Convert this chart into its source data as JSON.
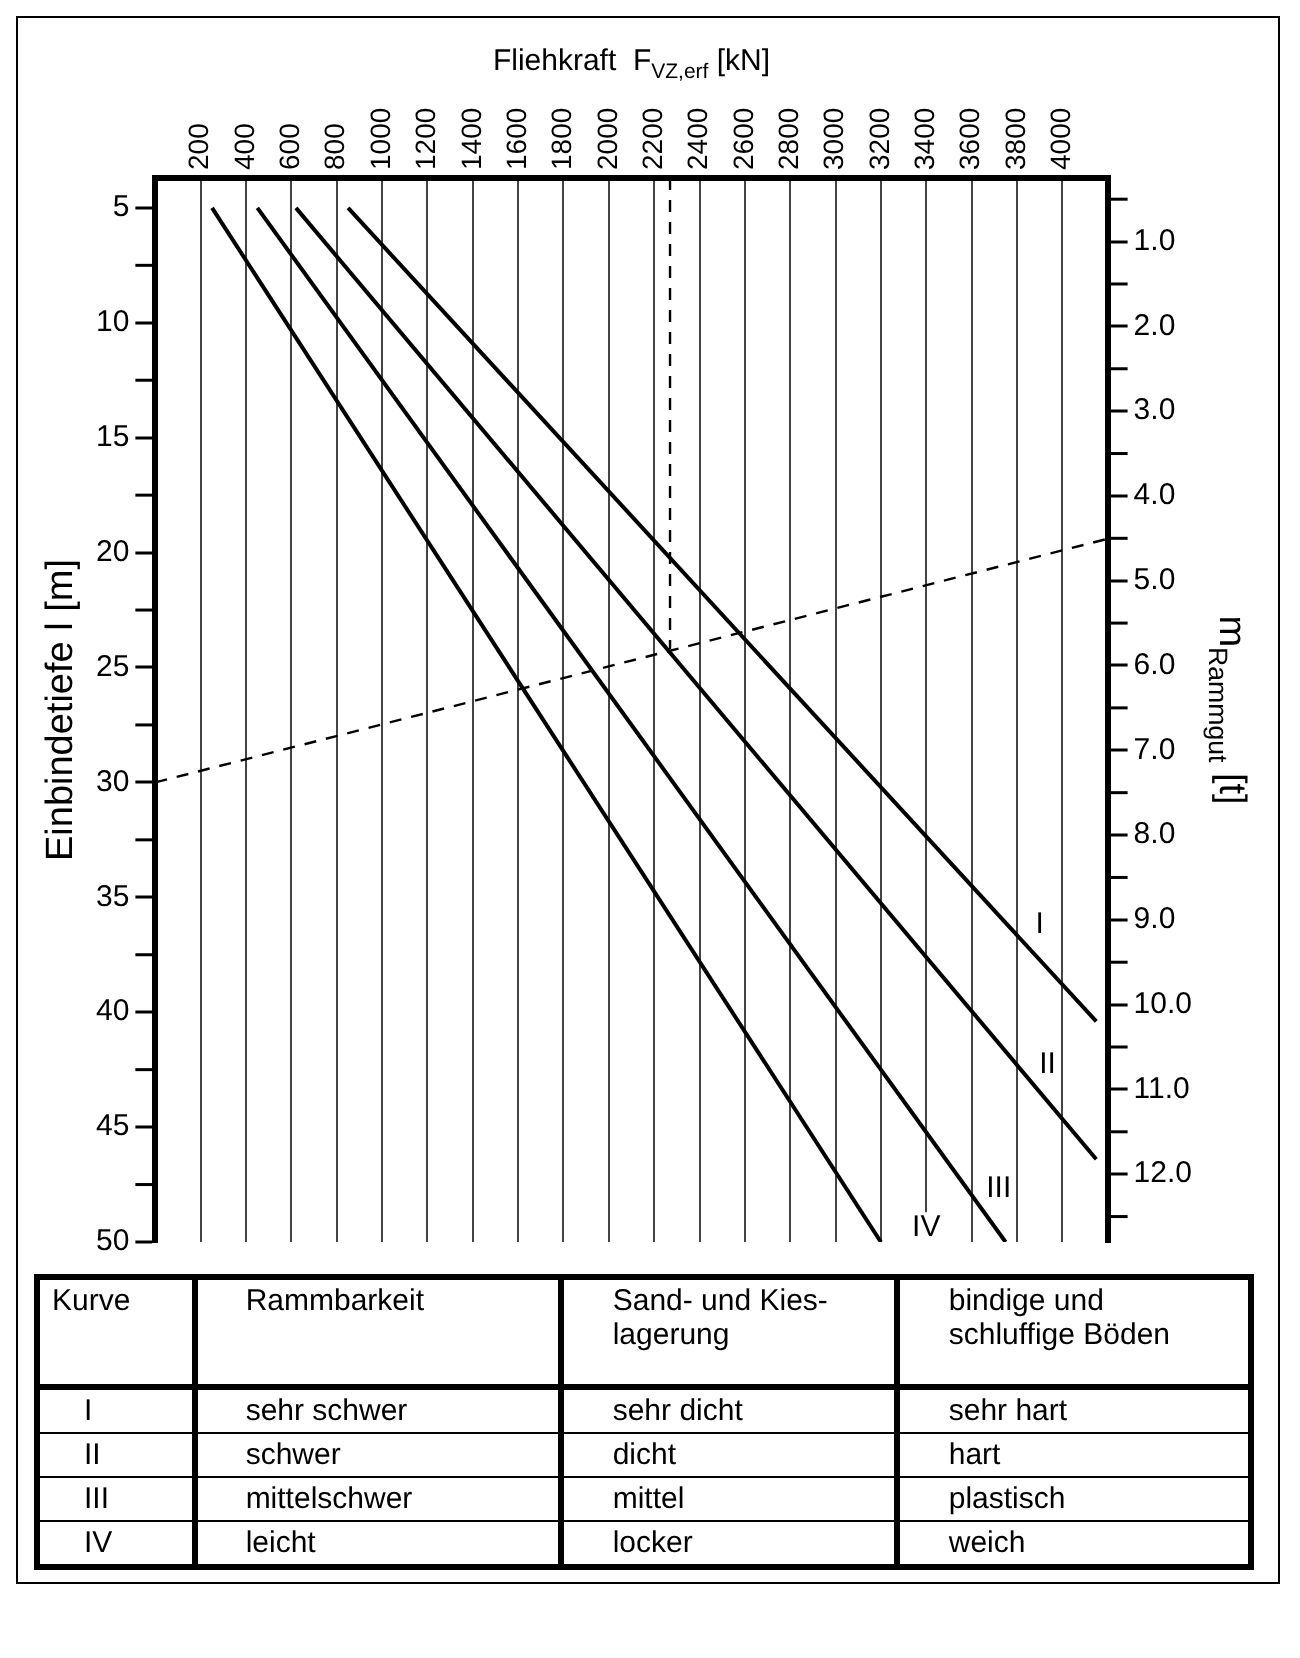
{
  "chart_data": [
    {
      "type": "line",
      "xlabel": "Fliehkraft  F$_{VZ,erf}$ [kN]",
      "ylabel": "Einbindetiefe l [m]",
      "y2label": "m$_{Rammgut}$ [t]",
      "xlim": [
        0,
        4200
      ],
      "xticks": [
        200,
        400,
        600,
        800,
        1000,
        1200,
        1400,
        1600,
        1800,
        2000,
        2200,
        2400,
        2600,
        2800,
        3000,
        3200,
        3400,
        3600,
        3800,
        4000
      ],
      "ylim": [
        50,
        3.7
      ],
      "yticks": [
        5,
        {
          "value": 7.5,
          "label": null
        },
        10,
        {
          "value": 12.5,
          "label": null
        },
        15,
        {
          "value": 17.5,
          "label": null
        },
        20,
        {
          "value": 22.5,
          "label": null
        },
        25,
        {
          "value": 27.5,
          "label": null
        },
        30,
        {
          "value": 32.5,
          "label": null
        },
        35,
        {
          "value": 37.5,
          "label": null
        },
        40,
        {
          "value": 42.5,
          "label": null
        },
        45,
        {
          "value": 47.5,
          "label": null
        },
        50
      ],
      "y2lim": [
        12.8,
        0.25
      ],
      "y2ticks": [
        {
          "value": 0.5,
          "label": null
        },
        {
          "value": 1,
          "label": "1.0"
        },
        {
          "value": 1.5,
          "label": null
        },
        {
          "value": 2,
          "label": "2.0"
        },
        {
          "value": 2.5,
          "label": null
        },
        {
          "value": 3,
          "label": "3.0"
        },
        {
          "value": 3.5,
          "label": null
        },
        {
          "value": 4,
          "label": "4.0"
        },
        {
          "value": 4.5,
          "label": null
        },
        {
          "value": 5,
          "label": "5.0"
        },
        {
          "value": 5.5,
          "label": null
        },
        {
          "value": 6,
          "label": "6.0"
        },
        {
          "value": 6.5,
          "label": null
        },
        {
          "value": 7,
          "label": "7.0"
        },
        {
          "value": 7.5,
          "label": null
        },
        {
          "value": 8,
          "label": "8.0"
        },
        {
          "value": 8.5,
          "label": null
        },
        {
          "value": 9,
          "label": "9.0"
        },
        {
          "value": 9.5,
          "label": null
        },
        {
          "value": 10,
          "label": "10.0"
        },
        {
          "value": 10.5,
          "label": null
        },
        {
          "value": 11,
          "label": "11.0"
        },
        {
          "value": 11.5,
          "label": null
        },
        {
          "value": 12,
          "label": "12.0"
        },
        {
          "value": 12.5,
          "label": null
        }
      ],
      "grid": "x",
      "legend": false,
      "marker": "none",
      "series": [
        {
          "color": "#000000",
          "x": [
            850,
            4150
          ],
          "values": [
            5,
            40.4
          ]
        },
        {
          "color": "#000000",
          "x": [
            620,
            4150
          ],
          "values": [
            5,
            46.4
          ]
        },
        {
          "color": "#000000",
          "x": [
            450,
            3750
          ],
          "values": [
            5,
            50
          ]
        },
        {
          "color": "#000000",
          "x": [
            250,
            3200
          ],
          "values": [
            5,
            50
          ]
        },
        {
          "color": "#000000",
          "x": [
            2270,
            2270
          ],
          "values": [
            3.7,
            24.2
          ],
          "line_style": "dashed"
        },
        {
          "color": "#000000",
          "x": [
            0,
            4200
          ],
          "values": [
            30,
            19.4
          ],
          "line_style": "dashed"
        }
      ],
      "annotations": [
        {
          "text": "I",
          "x": 3900,
          "y": 36.2
        },
        {
          "text": "II",
          "x": 3935,
          "y": 42.3
        },
        {
          "text": "III",
          "x": 3720,
          "y": 47.7
        },
        {
          "text": "IV",
          "x": 3400,
          "y": 49.4
        }
      ]
    },
    {
      "type": "other",
      "categories": [
        "Kurve",
        "Rammbarkeit",
        "Sand- und Kies-lagerung",
        "bindige und schluffige Böden"
      ],
      "annotations": [
        "I",
        "sehr schwer",
        "sehr dicht",
        "sehr hart",
        "II",
        "schwer",
        "dicht",
        "hart",
        "III",
        "mittelschwer",
        "mittel",
        "plastisch",
        "IV",
        "leicht",
        "locker",
        "weich"
      ]
    }
  ]
}
